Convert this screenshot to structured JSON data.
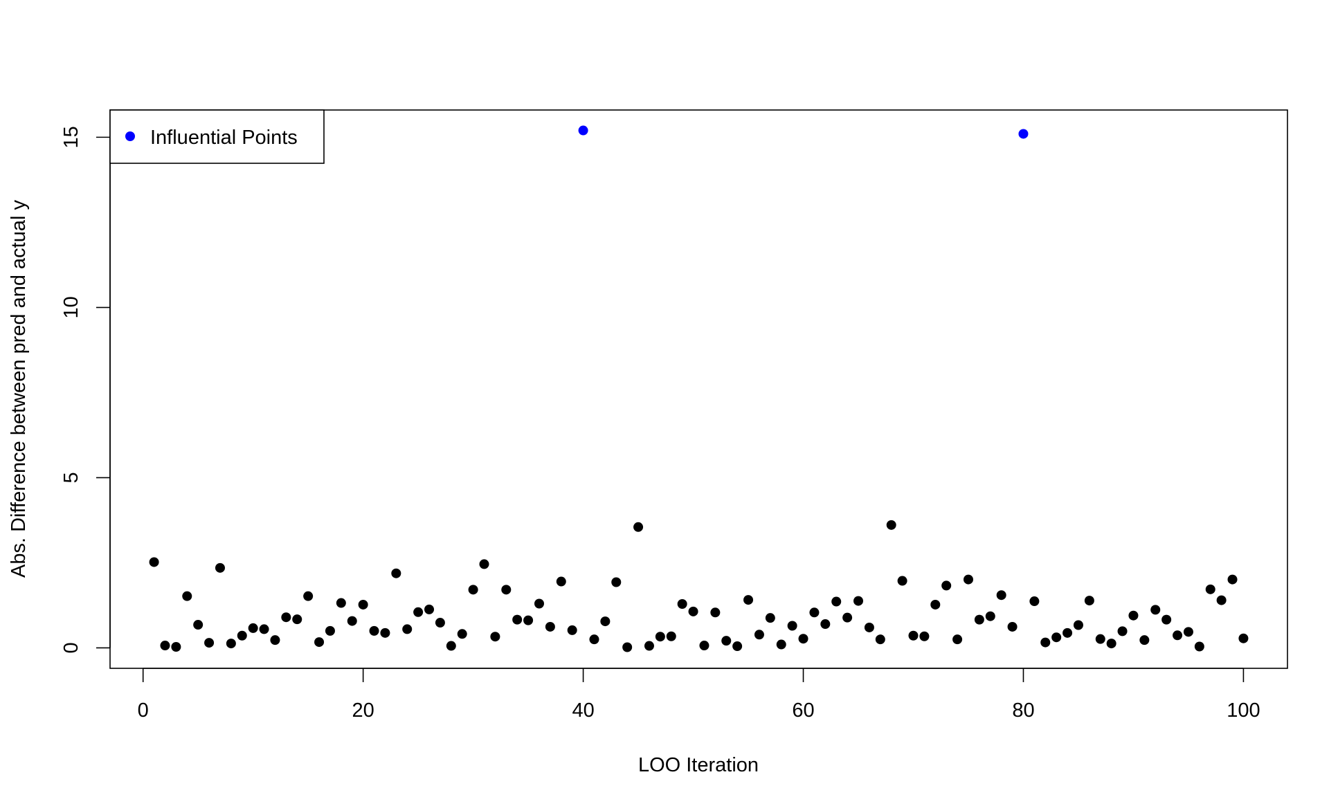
{
  "chart_data": {
    "type": "scatter",
    "xlabel": "LOO Iteration",
    "ylabel": "Abs. Difference between pred and actual y",
    "xlim": [
      -3,
      104
    ],
    "ylim": [
      -0.6,
      15.8
    ],
    "x_ticks": [
      0,
      20,
      40,
      60,
      80,
      100
    ],
    "y_ticks": [
      0,
      5,
      10,
      15
    ],
    "grid": false,
    "legend": {
      "position": "top-left",
      "entries": [
        {
          "label": "Influential Points",
          "color": "#0000ff"
        }
      ]
    },
    "series": [
      {
        "name": "",
        "color": "#000000",
        "x": [
          1,
          2,
          3,
          4,
          5,
          6,
          7,
          8,
          9,
          10,
          11,
          12,
          13,
          14,
          15,
          16,
          17,
          18,
          19,
          20,
          21,
          22,
          23,
          24,
          25,
          26,
          27,
          28,
          29,
          30,
          31,
          32,
          33,
          34,
          35,
          36,
          37,
          38,
          39,
          41,
          42,
          43,
          44,
          45,
          46,
          47,
          48,
          49,
          50,
          51,
          52,
          53,
          54,
          55,
          56,
          57,
          58,
          59,
          60,
          61,
          62,
          63,
          64,
          65,
          66,
          67,
          68,
          69,
          70,
          71,
          72,
          73,
          74,
          75,
          76,
          77,
          78,
          79,
          81,
          82,
          83,
          84,
          85,
          86,
          87,
          88,
          89,
          90,
          91,
          92,
          93,
          94,
          95,
          96,
          97,
          98,
          99,
          100
        ],
        "y": [
          2.52,
          0.07,
          0.03,
          1.52,
          0.68,
          0.15,
          2.35,
          0.13,
          0.36,
          0.58,
          0.55,
          0.23,
          0.9,
          0.84,
          1.52,
          0.17,
          0.5,
          1.32,
          0.79,
          1.27,
          0.5,
          0.44,
          2.19,
          0.55,
          1.05,
          1.13,
          0.74,
          0.06,
          0.41,
          1.71,
          2.46,
          0.33,
          1.71,
          0.83,
          0.81,
          1.3,
          0.62,
          1.95,
          0.52,
          0.25,
          0.78,
          1.93,
          0.02,
          3.55,
          0.06,
          0.33,
          0.34,
          1.29,
          1.07,
          0.07,
          1.04,
          0.21,
          0.05,
          1.41,
          0.39,
          0.88,
          0.1,
          0.65,
          0.27,
          1.04,
          0.7,
          1.36,
          0.89,
          1.38,
          0.6,
          0.25,
          3.61,
          1.97,
          0.36,
          0.34,
          1.27,
          1.83,
          0.25,
          2.01,
          0.83,
          0.93,
          1.55,
          0.62,
          1.37,
          0.16,
          0.31,
          0.44,
          0.67,
          1.39,
          0.26,
          0.13,
          0.49,
          0.95,
          0.23,
          1.12,
          0.83,
          0.37,
          0.47,
          0.04,
          1.72,
          1.4,
          2.01,
          0.28
        ]
      },
      {
        "name": "Influential Points",
        "color": "#0000ff",
        "x": [
          40,
          80
        ],
        "y": [
          15.2,
          15.1
        ]
      }
    ]
  }
}
